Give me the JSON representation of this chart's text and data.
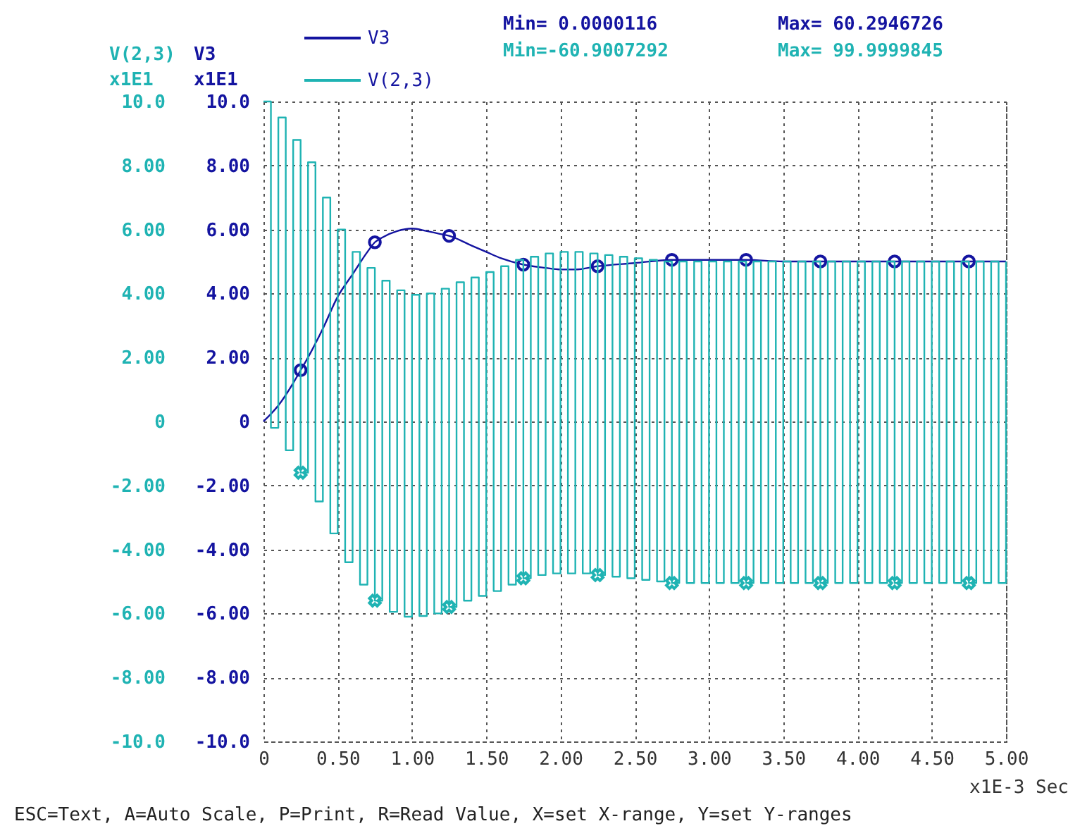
{
  "chart_data": {
    "type": "line",
    "xlabel": "x1E-3 Sec",
    "ylabel": "V3",
    "y2label": "V(2,3)",
    "annotations": [
      "x1E1",
      "x1E1",
      "Min= 0.0000116",
      "Max= 60.2946726",
      "Min=-60.9007292",
      "Max= 99.9999845",
      "ESC=Text, A=Auto Scale, P=Print, R=Read Value, X=set X-range, Y=set Y-ranges"
    ],
    "xlim": [
      0,
      5
    ],
    "xticks": [
      0,
      {
        "value": 0.5,
        "label": "0.50"
      },
      {
        "value": 1,
        "label": "1.00"
      },
      {
        "value": 1.5,
        "label": "1.50"
      },
      {
        "value": 2,
        "label": "2.00"
      },
      {
        "value": 2.5,
        "label": "2.50"
      },
      {
        "value": 3,
        "label": "3.00"
      },
      {
        "value": 3.5,
        "label": "3.50"
      },
      {
        "value": 4,
        "label": "4.00"
      },
      {
        "value": 4.5,
        "label": "4.50"
      },
      {
        "value": 5,
        "label": "5.00"
      }
    ],
    "ylim": [
      -10,
      10
    ],
    "yticks": [
      {
        "value": -10,
        "label": "-10.0"
      },
      {
        "value": -8,
        "label": "-8.00"
      },
      {
        "value": -6,
        "label": "-6.00"
      },
      {
        "value": -4,
        "label": "-4.00"
      },
      {
        "value": -2,
        "label": "-2.00"
      },
      0,
      {
        "value": 2,
        "label": "2.00"
      },
      {
        "value": 4,
        "label": "4.00"
      },
      {
        "value": 6,
        "label": "6.00"
      },
      {
        "value": 8,
        "label": "8.00"
      },
      {
        "value": 10,
        "label": "10.0"
      }
    ],
    "y2lim": [
      -10,
      10
    ],
    "y2ticks": [
      {
        "value": -10,
        "label": "-10.0"
      },
      {
        "value": -8,
        "label": "-8.00"
      },
      {
        "value": -6,
        "label": "-6.00"
      },
      {
        "value": -4,
        "label": "-4.00"
      },
      {
        "value": -2,
        "label": "-2.00"
      },
      0,
      {
        "value": 2,
        "label": "2.00"
      },
      {
        "value": 4,
        "label": "4.00"
      },
      {
        "value": 6,
        "label": "6.00"
      },
      {
        "value": 8,
        "label": "8.00"
      },
      {
        "value": 10,
        "label": "10.0"
      }
    ],
    "grid": true,
    "legend": "top",
    "series": [
      {
        "name": "V3",
        "color": "#1414a0",
        "x": [
          0,
          0.1,
          0.2,
          0.25,
          0.3,
          0.4,
          0.5,
          0.6,
          0.7,
          0.75,
          0.8,
          0.9,
          1.0,
          1.1,
          1.2,
          1.25,
          1.4,
          1.5,
          1.6,
          1.75,
          1.9,
          2.0,
          2.1,
          2.25,
          2.5,
          2.75,
          3.0,
          3.25,
          3.5,
          3.75,
          4.0,
          4.25,
          4.5,
          4.75,
          5.0
        ],
        "values": [
          0,
          0.5,
          1.2,
          1.6,
          2.0,
          2.9,
          3.9,
          4.6,
          5.3,
          5.6,
          5.75,
          5.95,
          6.03,
          5.95,
          5.85,
          5.8,
          5.5,
          5.3,
          5.1,
          4.9,
          4.8,
          4.75,
          4.75,
          4.85,
          4.95,
          5.05,
          5.05,
          5.05,
          5.0,
          5.0,
          5.0,
          5.0,
          5.0,
          5.0,
          5.0
        ]
      },
      {
        "name": "V(2,3)",
        "type": "step",
        "axis": "y2",
        "color": "#1fb3b3",
        "x": [
          0,
          0.05,
          0.1,
          0.15,
          0.2,
          0.25,
          0.3,
          0.35,
          0.4,
          0.45,
          0.5,
          0.55,
          0.6,
          0.65,
          0.7,
          0.75,
          0.8,
          0.85,
          0.9,
          0.95,
          1.0,
          1.05,
          1.1,
          1.15,
          1.2,
          1.25,
          1.3,
          1.35,
          1.4,
          1.45,
          1.5,
          1.55,
          1.6,
          1.65,
          1.7,
          1.75,
          1.8,
          1.85,
          1.9,
          1.95,
          2.0,
          2.05,
          2.1,
          2.15,
          2.2,
          2.25,
          2.3,
          2.35,
          2.4,
          2.45,
          2.5,
          2.55,
          2.6,
          2.65,
          2.7,
          2.75,
          2.8,
          2.85,
          2.9,
          2.95,
          3.0,
          3.05,
          3.1,
          3.15,
          3.2,
          3.25,
          3.3,
          3.35,
          3.4,
          3.45,
          3.5,
          3.55,
          3.6,
          3.65,
          3.7,
          3.75,
          3.8,
          3.85,
          3.9,
          3.95,
          4.0,
          4.05,
          4.1,
          4.15,
          4.2,
          4.25,
          4.3,
          4.35,
          4.4,
          4.45,
          4.5,
          4.55,
          4.6,
          4.65,
          4.7,
          4.75,
          4.8,
          4.85,
          4.9,
          4.95,
          5.0
        ],
        "values": [
          10,
          -0.2,
          9.5,
          -0.9,
          8.8,
          -1.6,
          8.1,
          -2.5,
          7.0,
          -3.5,
          6.0,
          -4.4,
          5.3,
          -5.1,
          4.8,
          -5.6,
          4.4,
          -5.95,
          4.1,
          -6.1,
          3.96,
          -6.08,
          4.0,
          -6.0,
          4.15,
          -5.8,
          4.35,
          -5.6,
          4.5,
          -5.45,
          4.67,
          -5.3,
          4.85,
          -5.1,
          5.05,
          -4.9,
          5.15,
          -4.8,
          5.25,
          -4.75,
          5.3,
          -4.75,
          5.3,
          -4.75,
          5.25,
          -4.8,
          5.2,
          -4.85,
          5.15,
          -4.9,
          5.1,
          -4.95,
          5.05,
          -5.0,
          5.0,
          -5.05,
          5.0,
          -5.05,
          5.0,
          -5.05,
          5.0,
          -5.05,
          5.0,
          -5.05,
          5.0,
          -5.05,
          5.0,
          -5.05,
          5.0,
          -5.05,
          5.0,
          -5.05,
          5.0,
          -5.05,
          5.0,
          -5.05,
          5.0,
          -5.05,
          5.0,
          -5.05,
          5.0,
          -5.05,
          5.0,
          -5.05,
          5.0,
          -5.05,
          5.0,
          -5.05,
          5.0,
          -5.05,
          5.0,
          -5.05,
          5.0,
          -5.05,
          5.0,
          -5.05,
          5.0,
          -5.05,
          5.0,
          -5.05,
          5.0
        ]
      },
      {
        "type": "scatter",
        "marker": "circle",
        "color": "#1414a0",
        "x": [
          0.25,
          0.75,
          1.25,
          1.75,
          2.25,
          2.75,
          3.25,
          3.75,
          4.25,
          4.75
        ],
        "values": [
          1.6,
          5.6,
          5.8,
          4.9,
          4.85,
          5.05,
          5.05,
          5.0,
          5.0,
          5.0
        ]
      },
      {
        "type": "scatter",
        "axis": "y2",
        "marker": "cross",
        "color": "#1fb3b3",
        "x": [
          0.25,
          0.75,
          1.25,
          1.75,
          2.25,
          2.75,
          3.25,
          3.75,
          4.25,
          4.75
        ],
        "values": [
          -1.6,
          -5.6,
          -5.8,
          -4.9,
          -4.8,
          -5.05,
          -5.05,
          -5.05,
          -5.05,
          -5.05
        ]
      }
    ]
  }
}
